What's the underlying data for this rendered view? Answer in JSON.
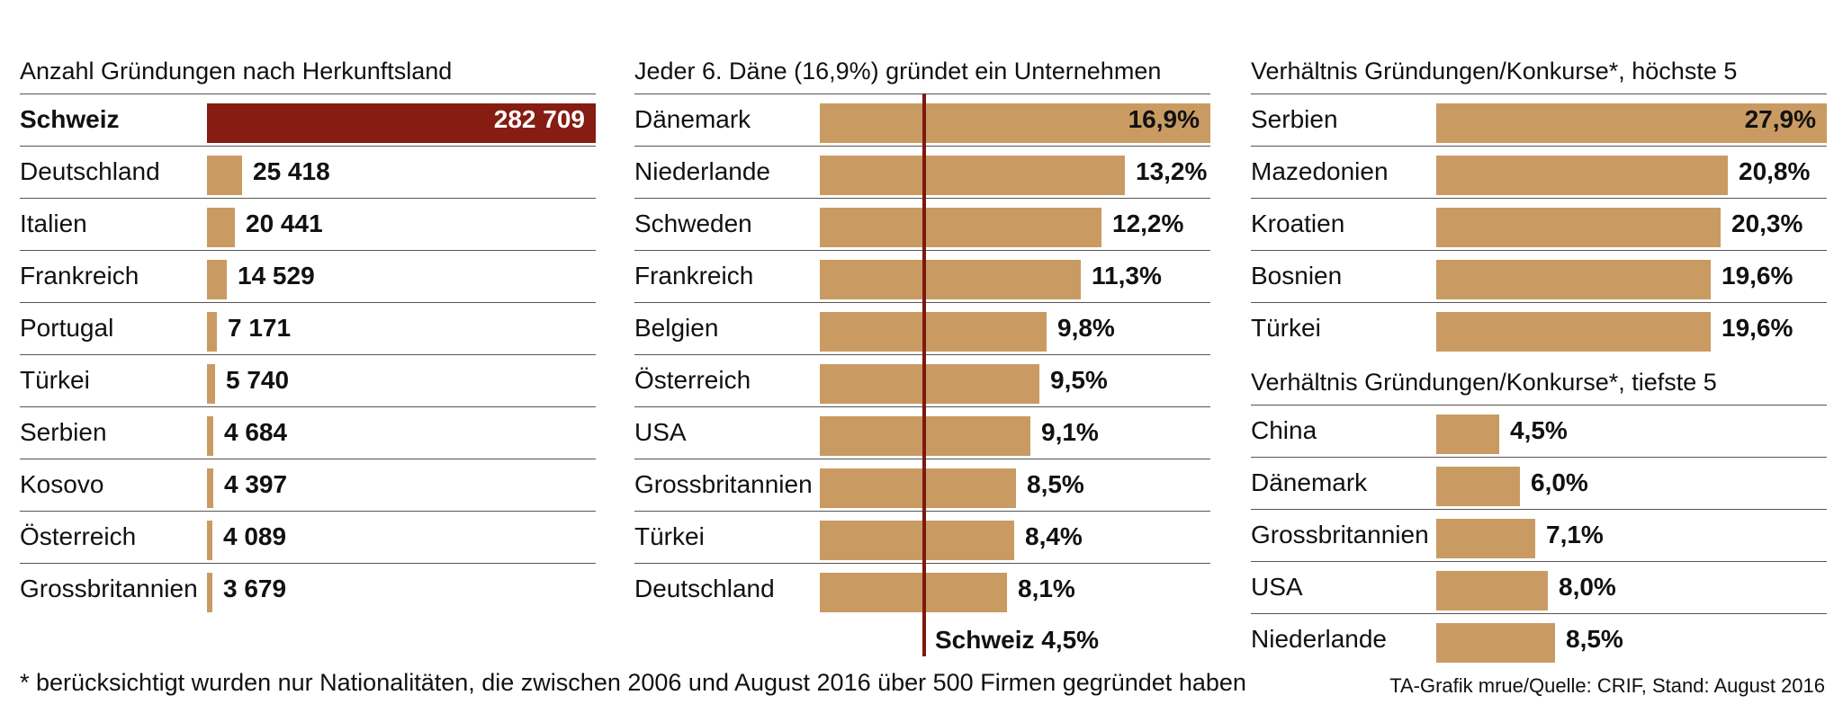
{
  "chart_data": [
    {
      "type": "bar",
      "title": "Anzahl Gründungen nach Herkunftsland",
      "categories": [
        "Schweiz",
        "Deutschland",
        "Italien",
        "Frankreich",
        "Portugal",
        "Türkei",
        "Serbien",
        "Kosovo",
        "Österreich",
        "Grossbritannien"
      ],
      "values": [
        282709,
        25418,
        20441,
        14529,
        7171,
        5740,
        4684,
        4397,
        4089,
        3679
      ],
      "labels": [
        "282 709",
        "25 418",
        "20 441",
        "14 529",
        "7 171",
        "5 740",
        "4 684",
        "4 397",
        "4 089",
        "3 679"
      ],
      "highlight": "Schweiz",
      "xlim": [
        0,
        282709
      ]
    },
    {
      "type": "bar",
      "title": "Jeder 6. Däne (16,9%) gründet ein Unternehmen",
      "categories": [
        "Dänemark",
        "Niederlande",
        "Schweden",
        "Frankreich",
        "Belgien",
        "Österreich",
        "USA",
        "Grossbritannien",
        "Türkei",
        "Deutschland"
      ],
      "values": [
        16.9,
        13.2,
        12.2,
        11.3,
        9.8,
        9.5,
        9.1,
        8.5,
        8.4,
        8.1
      ],
      "labels": [
        "16,9%",
        "13,2%",
        "12,2%",
        "11,3%",
        "9,8%",
        "9,5%",
        "9,1%",
        "8,5%",
        "8,4%",
        "8,1%"
      ],
      "reference": {
        "label": "Schweiz 4,5%",
        "value": 4.5
      },
      "xlim": [
        0,
        16.9
      ]
    },
    {
      "type": "bar",
      "title": "Verhältnis Gründungen/Konkurse*, höchste 5",
      "categories": [
        "Serbien",
        "Mazedonien",
        "Kroatien",
        "Bosnien",
        "Türkei"
      ],
      "values": [
        27.9,
        20.8,
        20.3,
        19.6,
        19.6
      ],
      "labels": [
        "27,9%",
        "20,8%",
        "20,3%",
        "19,6%",
        "19,6%"
      ],
      "xlim": [
        0,
        27.9
      ]
    },
    {
      "type": "bar",
      "title": "Verhältnis Gründungen/Konkurse*, tiefste 5",
      "categories": [
        "China",
        "Dänemark",
        "Grossbritannien",
        "USA",
        "Niederlande"
      ],
      "values": [
        4.5,
        6.0,
        7.1,
        8.0,
        8.5
      ],
      "labels": [
        "4,5%",
        "6,0%",
        "7,1%",
        "8,0%",
        "8,5%"
      ],
      "xlim": [
        0,
        27.9
      ]
    }
  ],
  "colors": {
    "bar": "#c99b63",
    "highlight": "#861c12",
    "reference_line": "#7d1a10"
  },
  "footnote": "* berücksichtigt wurden nur Nationalitäten, die zwischen 2006 und August 2016 über 500 Firmen gegründet haben",
  "source": "TA-Grafik mrue/Quelle: CRIF, Stand: August 2016"
}
